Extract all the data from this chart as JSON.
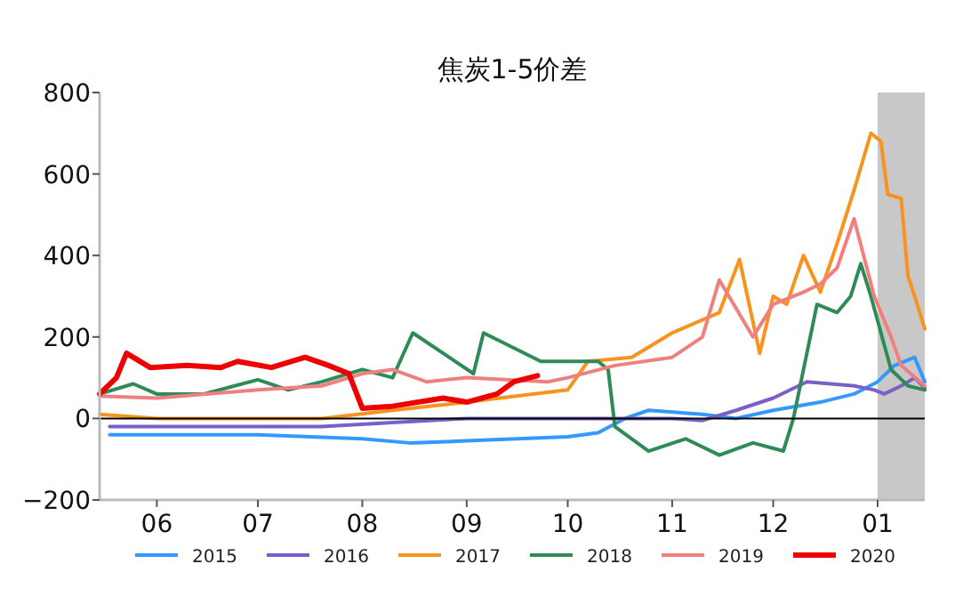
{
  "chart_data": {
    "type": "line",
    "title": "焦炭1-5价差",
    "xlim": [
      "2020-05-15",
      "2021-01-15"
    ],
    "ylim": [
      -200,
      800
    ],
    "yticks": [
      -200,
      0,
      200,
      400,
      600,
      800
    ],
    "xticks": [
      {
        "value": "2020-06-01",
        "label": "06"
      },
      {
        "value": "2020-07-01",
        "label": "07"
      },
      {
        "value": "2020-08-01",
        "label": "08"
      },
      {
        "value": "2020-09-01",
        "label": "09"
      },
      {
        "value": "2020-10-01",
        "label": "10"
      },
      {
        "value": "2020-11-01",
        "label": "11"
      },
      {
        "value": "2020-12-01",
        "label": "12"
      },
      {
        "value": "2021-01-01",
        "label": "01"
      }
    ],
    "ref_lines": [
      {
        "axis": "y",
        "value": 0,
        "color": "#000000"
      }
    ],
    "bands": [
      {
        "axis": "x",
        "from": "2021-01-01",
        "to": "2021-01-15",
        "color": "#c8c8c8"
      }
    ],
    "legend": "bottom",
    "series": [
      {
        "name": "2015",
        "color": "#3399ff",
        "x": [
          "2020-05-18",
          "2020-06-01",
          "2020-07-01",
          "2020-08-01",
          "2020-08-15",
          "2020-09-01",
          "2020-10-01",
          "2020-10-10",
          "2020-10-18",
          "2020-10-25",
          "2020-11-10",
          "2020-11-20",
          "2020-12-01",
          "2020-12-15",
          "2020-12-25",
          "2021-01-01",
          "2021-01-06",
          "2021-01-12",
          "2021-01-15"
        ],
        "values": [
          -40,
          -40,
          -40,
          -50,
          -60,
          -55,
          -45,
          -35,
          0,
          20,
          10,
          0,
          20,
          40,
          60,
          90,
          130,
          150,
          90
        ]
      },
      {
        "name": "2016",
        "color": "#7b5fc8",
        "x": [
          "2020-05-18",
          "2020-06-01",
          "2020-07-01",
          "2020-07-20",
          "2020-08-10",
          "2020-09-01",
          "2020-10-15",
          "2020-11-01",
          "2020-11-10",
          "2020-11-20",
          "2020-12-01",
          "2020-12-11",
          "2020-12-25",
          "2020-12-31",
          "2021-01-03",
          "2021-01-08",
          "2021-01-12",
          "2021-01-15"
        ],
        "values": [
          -20,
          -20,
          -20,
          -20,
          -10,
          0,
          0,
          0,
          -5,
          20,
          50,
          90,
          80,
          70,
          60,
          80,
          100,
          75
        ]
      },
      {
        "name": "2017",
        "color": "#f7931e",
        "x": [
          "2020-05-15",
          "2020-06-01",
          "2020-07-01",
          "2020-07-20",
          "2020-08-10",
          "2020-09-01",
          "2020-10-01",
          "2020-10-07",
          "2020-10-20",
          "2020-11-01",
          "2020-11-15",
          "2020-11-21",
          "2020-11-27",
          "2020-12-01",
          "2020-12-05",
          "2020-12-10",
          "2020-12-15",
          "2020-12-20",
          "2020-12-25",
          "2020-12-30",
          "2021-01-02",
          "2021-01-04",
          "2021-01-08",
          "2021-01-10",
          "2021-01-12",
          "2021-01-15"
        ],
        "values": [
          10,
          0,
          0,
          0,
          20,
          40,
          70,
          140,
          150,
          210,
          260,
          390,
          160,
          300,
          280,
          400,
          310,
          430,
          560,
          700,
          680,
          550,
          540,
          350,
          300,
          220
        ]
      },
      {
        "name": "2018",
        "color": "#2e8b57",
        "x": [
          "2020-05-15",
          "2020-05-25",
          "2020-06-01",
          "2020-06-15",
          "2020-07-01",
          "2020-07-10",
          "2020-07-20",
          "2020-08-01",
          "2020-08-10",
          "2020-08-16",
          "2020-09-03",
          "2020-09-06",
          "2020-09-23",
          "2020-10-10",
          "2020-10-13",
          "2020-10-15",
          "2020-10-25",
          "2020-11-05",
          "2020-11-15",
          "2020-11-25",
          "2020-12-04",
          "2020-12-07",
          "2020-12-14",
          "2020-12-20",
          "2020-12-24",
          "2020-12-27",
          "2020-12-30",
          "2021-01-05",
          "2021-01-10",
          "2021-01-15"
        ],
        "values": [
          60,
          85,
          60,
          60,
          95,
          70,
          90,
          120,
          100,
          210,
          110,
          210,
          140,
          140,
          120,
          -20,
          -80,
          -50,
          -90,
          -60,
          -80,
          0,
          280,
          260,
          300,
          380,
          300,
          120,
          80,
          70
        ]
      },
      {
        "name": "2019",
        "color": "#f08080",
        "x": [
          "2020-05-15",
          "2020-06-01",
          "2020-07-01",
          "2020-07-20",
          "2020-08-01",
          "2020-08-10",
          "2020-08-20",
          "2020-09-01",
          "2020-09-25",
          "2020-10-01",
          "2020-10-15",
          "2020-11-01",
          "2020-11-10",
          "2020-11-15",
          "2020-11-25",
          "2020-12-01",
          "2020-12-10",
          "2020-12-15",
          "2020-12-20",
          "2020-12-25",
          "2020-12-31",
          "2021-01-05",
          "2021-01-08",
          "2021-01-15"
        ],
        "values": [
          55,
          50,
          70,
          80,
          110,
          120,
          90,
          100,
          90,
          100,
          130,
          150,
          200,
          340,
          200,
          280,
          310,
          330,
          370,
          490,
          300,
          200,
          130,
          80
        ]
      },
      {
        "name": "2020",
        "color": "#ee0000",
        "x": [
          "2020-05-15",
          "2020-05-20",
          "2020-05-23",
          "2020-05-30",
          "2020-06-10",
          "2020-06-20",
          "2020-06-25",
          "2020-07-05",
          "2020-07-15",
          "2020-07-22",
          "2020-07-28",
          "2020-08-01",
          "2020-08-10",
          "2020-08-25",
          "2020-09-01",
          "2020-09-10",
          "2020-09-15",
          "2020-09-22"
        ],
        "values": [
          60,
          100,
          160,
          125,
          130,
          125,
          140,
          125,
          150,
          130,
          110,
          25,
          30,
          50,
          40,
          60,
          90,
          105
        ]
      }
    ]
  }
}
